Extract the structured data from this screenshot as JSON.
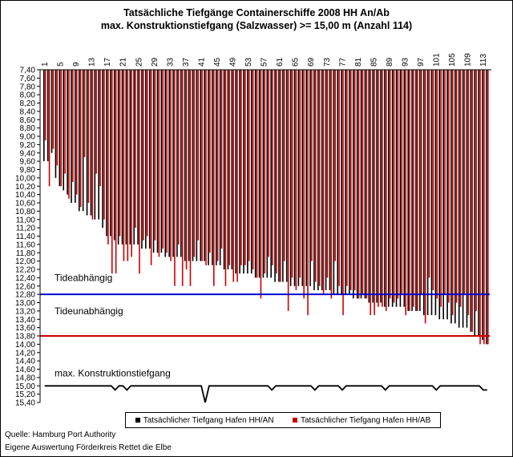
{
  "chart_data": {
    "type": "bar",
    "title": "Tatsächliche Tiefgänge Containerschiffe 2008 HH An/Ab",
    "subtitle": "max. Konstruktionstiefgang (Salzwasser)  >= 15,00 m (Anzahl 114)",
    "x_tick_labels": [
      "1",
      "5",
      "9",
      "13",
      "17",
      "21",
      "25",
      "29",
      "33",
      "37",
      "41",
      "45",
      "49",
      "53",
      "57",
      "61",
      "65",
      "69",
      "73",
      "77",
      "81",
      "85",
      "89",
      "93",
      "97",
      "101",
      "105",
      "109",
      "113"
    ],
    "ylim": [
      7.4,
      15.4
    ],
    "y_inverted": true,
    "y_tick_step": 0.2,
    "grid": false,
    "legend_position": "bottom",
    "series": [
      {
        "name": "Tatsächlicher Tiefgang Hafen HH/AN",
        "color": "#000000",
        "values": [
          9.6,
          9.6,
          9.4,
          10.0,
          10.2,
          10.3,
          10.4,
          10.6,
          10.6,
          10.8,
          10.8,
          10.9,
          10.9,
          11.0,
          11.0,
          11.2,
          11.4,
          11.4,
          11.5,
          11.6,
          11.6,
          11.6,
          11.6,
          11.6,
          11.6,
          11.7,
          11.7,
          11.7,
          11.8,
          11.8,
          11.8,
          11.9,
          11.9,
          11.9,
          11.9,
          11.9,
          12.0,
          12.0,
          12.0,
          12.0,
          12.0,
          12.0,
          12.1,
          12.1,
          12.1,
          12.1,
          12.2,
          12.2,
          12.2,
          12.3,
          12.3,
          12.3,
          12.3,
          12.3,
          12.4,
          12.4,
          12.4,
          12.4,
          12.4,
          12.5,
          12.5,
          12.5,
          12.5,
          12.6,
          12.6,
          12.6,
          12.6,
          12.6,
          12.6,
          12.7,
          12.7,
          12.7,
          12.7,
          12.7,
          12.8,
          12.8,
          12.8,
          12.8,
          12.8,
          12.9,
          12.9,
          12.9,
          12.9,
          13.0,
          13.0,
          13.0,
          13.0,
          13.1,
          13.1,
          13.1,
          13.1,
          13.1,
          13.1,
          13.2,
          13.2,
          13.2,
          13.2,
          13.3,
          13.3,
          13.3,
          13.3,
          13.4,
          13.4,
          13.4,
          13.5,
          13.5,
          13.6,
          13.6,
          13.6,
          13.7,
          13.8,
          13.8,
          13.9,
          14.0
        ],
        "label": "Tatsächlicher Tiefgang Hafen HH/AN"
      },
      {
        "name": "Tatsächlicher Tiefgang Hafen HH/AB",
        "color": "#cc0000",
        "values": [
          9.1,
          10.2,
          9.3,
          9.7,
          10.2,
          9.9,
          10.5,
          10.1,
          10.4,
          10.7,
          9.5,
          10.6,
          11.0,
          9.9,
          10.2,
          11.0,
          11.6,
          12.3,
          12.3,
          11.4,
          12.0,
          12.0,
          11.9,
          11.2,
          12.3,
          11.5,
          11.4,
          12.1,
          11.5,
          11.9,
          11.7,
          11.8,
          12.0,
          12.6,
          11.6,
          12.6,
          12.2,
          12.6,
          11.9,
          11.5,
          12.0,
          12.1,
          11.8,
          12.6,
          12.0,
          11.7,
          12.6,
          12.1,
          12.5,
          12.5,
          12.1,
          12.1,
          12.0,
          12.2,
          12.4,
          12.9,
          12.3,
          11.9,
          12.1,
          12.3,
          12.5,
          12.0,
          13.2,
          12.4,
          12.7,
          12.4,
          12.9,
          13.3,
          12.0,
          12.5,
          12.6,
          12.8,
          12.4,
          12.9,
          12.0,
          12.6,
          13.3,
          12.6,
          12.7,
          12.7,
          12.9,
          12.8,
          12.9,
          13.3,
          13.3,
          13.1,
          13.1,
          13.2,
          12.9,
          13.0,
          12.9,
          12.8,
          13.3,
          13.2,
          13.1,
          13.2,
          12.8,
          13.5,
          12.4,
          12.7,
          12.9,
          13.1,
          12.8,
          13.0,
          13.3,
          13.0,
          13.1,
          12.8,
          13.3,
          13.7,
          13.2,
          14.0,
          14.0,
          14.0
        ]
      },
      {
        "name": "max. Konstruktionstiefgang",
        "color": "#000000",
        "values": [
          15.0,
          15.0,
          15.0,
          15.0,
          15.0,
          15.0,
          15.0,
          15.0,
          15.0,
          15.0,
          15.0,
          15.0,
          15.0,
          15.0,
          15.0,
          15.0,
          15.0,
          15.0,
          15.1,
          15.0,
          15.0,
          15.1,
          15.0,
          15.0,
          15.0,
          15.0,
          15.0,
          15.0,
          15.0,
          15.0,
          15.0,
          15.0,
          15.0,
          15.0,
          15.0,
          15.0,
          15.0,
          15.0,
          15.0,
          15.0,
          15.0,
          15.4,
          15.0,
          15.0,
          15.0,
          15.0,
          15.0,
          15.0,
          15.0,
          15.0,
          15.0,
          15.0,
          15.0,
          15.0,
          15.0,
          15.0,
          15.0,
          15.0,
          15.1,
          15.0,
          15.0,
          15.0,
          15.0,
          15.0,
          15.0,
          15.0,
          15.0,
          15.0,
          15.0,
          15.1,
          15.0,
          15.0,
          15.0,
          15.0,
          15.0,
          15.0,
          15.1,
          15.0,
          15.0,
          15.0,
          15.0,
          15.0,
          15.0,
          15.0,
          15.0,
          15.0,
          15.0,
          15.1,
          15.0,
          15.0,
          15.0,
          15.0,
          15.0,
          15.0,
          15.0,
          15.0,
          15.0,
          15.0,
          15.0,
          15.0,
          15.1,
          15.0,
          15.0,
          15.0,
          15.0,
          15.0,
          15.0,
          15.0,
          15.0,
          15.0,
          15.0,
          15.0,
          15.1,
          15.1
        ]
      }
    ],
    "reference_lines": [
      {
        "value": 12.8,
        "color": "#0000cc",
        "label": "Tideabhängig"
      },
      {
        "value": 13.8,
        "color": "#cc0000",
        "label": "Tideunabhängig"
      }
    ],
    "annotations": [
      {
        "text": "Tideabhängig",
        "y": 12.4
      },
      {
        "text": "Tideunabhängig",
        "y": 13.2
      },
      {
        "text": "max. Konstruktionstiefgang",
        "y": 14.7
      }
    ]
  },
  "legend": {
    "item_an": "Tatsächlicher Tiefgang Hafen HH/AN",
    "item_ab": "Tatsächlicher Tiefgang Hafen HH/AB"
  },
  "source": {
    "line1": "Quelle: Hamburg Port Authority",
    "line2": "Eigene Auswertung Förderkreis Rettet die Elbe"
  }
}
